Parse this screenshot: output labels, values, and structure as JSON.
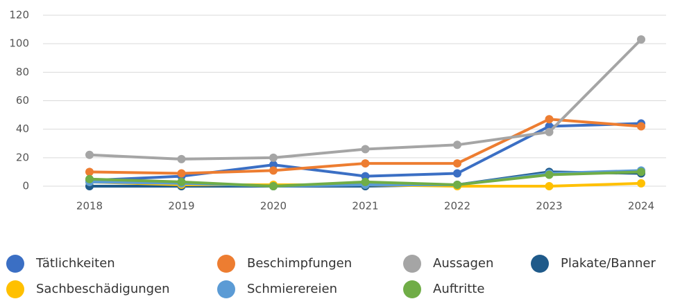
{
  "chart_data": {
    "type": "line",
    "categories": [
      "2018",
      "2019",
      "2020",
      "2021",
      "2022",
      "2023",
      "2024"
    ],
    "series": [
      {
        "name": "Tätlichkeiten",
        "color": "#3b6fc4",
        "values": [
          4,
          7,
          15,
          7,
          9,
          42,
          44
        ]
      },
      {
        "name": "Beschimpfungen",
        "color": "#ed7d31",
        "values": [
          10,
          9,
          11,
          16,
          16,
          47,
          42
        ]
      },
      {
        "name": "Aussagen",
        "color": "#a5a5a5",
        "values": [
          22,
          19,
          20,
          26,
          29,
          38,
          103
        ]
      },
      {
        "name": "Plakate/Banner",
        "color": "#1f5a8a",
        "values": [
          0,
          0,
          0,
          0,
          1,
          10,
          9
        ]
      },
      {
        "name": "Sachbeschädigungen",
        "color": "#ffc000",
        "values": [
          3,
          1,
          1,
          1,
          0,
          0,
          2
        ]
      },
      {
        "name": "Schmierereien",
        "color": "#5b9bd5",
        "values": [
          3,
          2,
          0,
          1,
          1,
          9,
          11
        ]
      },
      {
        "name": "Auftritte",
        "color": "#70ad47",
        "values": [
          5,
          3,
          0,
          3,
          1,
          8,
          10
        ]
      }
    ],
    "ylim": [
      0,
      120
    ],
    "yticks": [
      0,
      20,
      40,
      60,
      80,
      100,
      120
    ],
    "grid": true
  }
}
